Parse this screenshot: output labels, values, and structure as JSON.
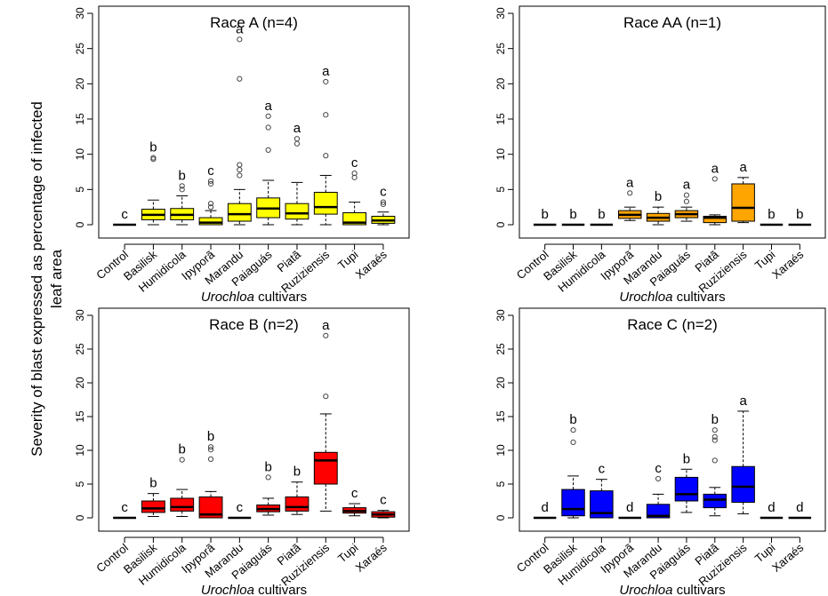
{
  "figure": {
    "ylabel_line1": "Severity of blast expressed as percentage of infected",
    "ylabel_line2": "leaf area",
    "xlabel_italic": "Urochloa",
    "xlabel_rest": " cultivars"
  },
  "chart_data": [
    {
      "type": "box",
      "title": "Race A (n=4)",
      "xlabel": "Urochloa cultivars",
      "ylabel": "Severity of blast expressed as percentage of infected leaf area",
      "ylim": [
        0,
        30
      ],
      "yticks": [
        0,
        5,
        10,
        15,
        20,
        25,
        30
      ],
      "color": "#FFFF00",
      "categories": [
        "Control",
        "Basilisk",
        "Humidicola",
        "Ipyporã",
        "Marandu",
        "Paiaguás",
        "Piatã",
        "Ruziziensis",
        "Tupi",
        "Xaraés"
      ],
      "boxes": [
        {
          "q1": 0,
          "median": 0,
          "q3": 0,
          "whisker_low": 0,
          "whisker_high": 0,
          "outliers": [],
          "letter": "c"
        },
        {
          "q1": 0.7,
          "median": 1.4,
          "q3": 2.2,
          "whisker_low": 0,
          "whisker_high": 3.5,
          "outliers": [
            9.3,
            9.5
          ],
          "letter": "b"
        },
        {
          "q1": 0.7,
          "median": 1.4,
          "q3": 2.3,
          "whisker_low": 0,
          "whisker_high": 4.1,
          "outliers": [
            5,
            5.5
          ],
          "letter": "b"
        },
        {
          "q1": 0,
          "median": 0.3,
          "q3": 1,
          "whisker_low": 0,
          "whisker_high": 2,
          "outliers": [
            2.5,
            3,
            5.8,
            6.2
          ],
          "letter": "c"
        },
        {
          "q1": 0.5,
          "median": 1.5,
          "q3": 3,
          "whisker_low": 0,
          "whisker_high": 5,
          "outliers": [
            7,
            7.8,
            8.5,
            20.7,
            26.3
          ],
          "letter": "a"
        },
        {
          "q1": 1,
          "median": 2.3,
          "q3": 3.8,
          "whisker_low": 0,
          "whisker_high": 6.3,
          "outliers": [
            10.6,
            13.8,
            15.4
          ],
          "letter": "a"
        },
        {
          "q1": 0.8,
          "median": 1.6,
          "q3": 3,
          "whisker_low": 0,
          "whisker_high": 6,
          "outliers": [
            11.5,
            12.2
          ],
          "letter": "a"
        },
        {
          "q1": 1.5,
          "median": 2.5,
          "q3": 4.6,
          "whisker_low": 0,
          "whisker_high": 7,
          "outliers": [
            9.8,
            15.6,
            20.3
          ],
          "letter": "a"
        },
        {
          "q1": 0,
          "median": 0.3,
          "q3": 1.7,
          "whisker_low": 0,
          "whisker_high": 3.2,
          "outliers": [
            6.7,
            7.3
          ],
          "letter": "c"
        },
        {
          "q1": 0.2,
          "median": 0.6,
          "q3": 1.2,
          "whisker_low": 0,
          "whisker_high": 1.8,
          "outliers": [
            2.9,
            3.2
          ],
          "letter": "c"
        }
      ]
    },
    {
      "type": "box",
      "title": "Race AA (n=1)",
      "xlabel": "Urochloa cultivars",
      "ylim": [
        0,
        30
      ],
      "yticks": [
        0,
        5,
        10,
        15,
        20,
        25,
        30
      ],
      "color": "#FFA500",
      "categories": [
        "Control",
        "Basilisk",
        "Humidicola",
        "Ipyporã",
        "Marandu",
        "Paiaguás",
        "Piatã",
        "Ruziziensis",
        "Tupi",
        "Xaraés"
      ],
      "boxes": [
        {
          "q1": 0,
          "median": 0,
          "q3": 0,
          "whisker_low": 0,
          "whisker_high": 0,
          "outliers": [],
          "letter": "b"
        },
        {
          "q1": 0,
          "median": 0,
          "q3": 0,
          "whisker_low": 0,
          "whisker_high": 0,
          "outliers": [],
          "letter": "b"
        },
        {
          "q1": 0,
          "median": 0,
          "q3": 0,
          "whisker_low": 0,
          "whisker_high": 0,
          "outliers": [],
          "letter": "b"
        },
        {
          "q1": 0.9,
          "median": 1.4,
          "q3": 2,
          "whisker_low": 0.6,
          "whisker_high": 2.5,
          "outliers": [
            4.5
          ],
          "letter": "a"
        },
        {
          "q1": 0.5,
          "median": 1,
          "q3": 1.6,
          "whisker_low": 0,
          "whisker_high": 2.5,
          "outliers": [],
          "letter": "b"
        },
        {
          "q1": 1,
          "median": 1.5,
          "q3": 2,
          "whisker_low": 0.5,
          "whisker_high": 2.5,
          "outliers": [
            3.3,
            4.2
          ],
          "letter": "a"
        },
        {
          "q1": 0.3,
          "median": 1,
          "q3": 1.2,
          "whisker_low": 0,
          "whisker_high": 1.4,
          "outliers": [
            6.5
          ],
          "letter": "a"
        },
        {
          "q1": 0.5,
          "median": 2.4,
          "q3": 5.8,
          "whisker_low": 0.3,
          "whisker_high": 6.7,
          "outliers": [],
          "letter": "a"
        },
        {
          "q1": 0,
          "median": 0,
          "q3": 0,
          "whisker_low": 0,
          "whisker_high": 0,
          "outliers": [],
          "letter": "b"
        },
        {
          "q1": 0,
          "median": 0,
          "q3": 0,
          "whisker_low": 0,
          "whisker_high": 0,
          "outliers": [],
          "letter": "b"
        }
      ]
    },
    {
      "type": "box",
      "title": "Race B (n=2)",
      "xlabel": "Urochloa cultivars",
      "ylim": [
        0,
        30
      ],
      "yticks": [
        0,
        5,
        10,
        15,
        20,
        25,
        30
      ],
      "color": "#FF0000",
      "categories": [
        "Control",
        "Basilisk",
        "Humidicola",
        "Ipyporã",
        "Marandu",
        "Paiaguás",
        "Piatã",
        "Ruziziensis",
        "Tupi",
        "Xaraés"
      ],
      "boxes": [
        {
          "q1": 0,
          "median": 0,
          "q3": 0,
          "whisker_low": 0,
          "whisker_high": 0,
          "outliers": [],
          "letter": "c"
        },
        {
          "q1": 0.8,
          "median": 1.4,
          "q3": 2.5,
          "whisker_low": 0.2,
          "whisker_high": 3.6,
          "outliers": [],
          "letter": "b"
        },
        {
          "q1": 1,
          "median": 1.6,
          "q3": 2.9,
          "whisker_low": 0.2,
          "whisker_high": 4.2,
          "outliers": [
            8.6
          ],
          "letter": "b"
        },
        {
          "q1": 0,
          "median": 0.5,
          "q3": 3.1,
          "whisker_low": 0,
          "whisker_high": 3.9,
          "outliers": [
            8.7,
            10.1,
            10.5
          ],
          "letter": "b"
        },
        {
          "q1": 0,
          "median": 0,
          "q3": 0,
          "whisker_low": 0,
          "whisker_high": 0,
          "outliers": [],
          "letter": "c"
        },
        {
          "q1": 0.9,
          "median": 1.3,
          "q3": 1.9,
          "whisker_low": 0.4,
          "whisker_high": 2.9,
          "outliers": [
            6
          ],
          "letter": "b"
        },
        {
          "q1": 1,
          "median": 1.6,
          "q3": 3.1,
          "whisker_low": 0.5,
          "whisker_high": 5.3,
          "outliers": [],
          "letter": "b"
        },
        {
          "q1": 5,
          "median": 8.5,
          "q3": 9.7,
          "whisker_low": 1,
          "whisker_high": 15.4,
          "outliers": [
            18,
            27
          ],
          "letter": "a"
        },
        {
          "q1": 0.7,
          "median": 1,
          "q3": 1.5,
          "whisker_low": 0.3,
          "whisker_high": 2.1,
          "outliers": [],
          "letter": "c"
        },
        {
          "q1": 0.1,
          "median": 0.5,
          "q3": 0.9,
          "whisker_low": 0,
          "whisker_high": 1.1,
          "outliers": [],
          "letter": "c"
        }
      ]
    },
    {
      "type": "box",
      "title": "Race C (n=2)",
      "xlabel": "Urochloa cultivars",
      "ylim": [
        0,
        30
      ],
      "yticks": [
        0,
        5,
        10,
        15,
        20,
        25,
        30
      ],
      "color": "#0000FF",
      "categories": [
        "Control",
        "Basilisk",
        "Humidicola",
        "Ipyporã",
        "Marandu",
        "Paiaguás",
        "Piatã",
        "Ruziziensis",
        "Tupi",
        "Xaraés"
      ],
      "boxes": [
        {
          "q1": 0,
          "median": 0,
          "q3": 0,
          "whisker_low": 0,
          "whisker_high": 0,
          "outliers": [],
          "letter": "d"
        },
        {
          "q1": 0.3,
          "median": 1.3,
          "q3": 4.2,
          "whisker_low": 0,
          "whisker_high": 6.2,
          "outliers": [
            11.2,
            13
          ],
          "letter": "b"
        },
        {
          "q1": 0,
          "median": 0.7,
          "q3": 4,
          "whisker_low": 0,
          "whisker_high": 5.7,
          "outliers": [],
          "letter": "c"
        },
        {
          "q1": 0,
          "median": 0,
          "q3": 0,
          "whisker_low": 0,
          "whisker_high": 0,
          "outliers": [],
          "letter": "d"
        },
        {
          "q1": 0,
          "median": 0.3,
          "q3": 2,
          "whisker_low": 0,
          "whisker_high": 3.5,
          "outliers": [
            5.8
          ],
          "letter": "c"
        },
        {
          "q1": 2.5,
          "median": 3.5,
          "q3": 6,
          "whisker_low": 0.8,
          "whisker_high": 7.2,
          "outliers": [],
          "letter": "b"
        },
        {
          "q1": 1.5,
          "median": 2.7,
          "q3": 3.5,
          "whisker_low": 0.3,
          "whisker_high": 4.5,
          "outliers": [
            8.5,
            11.5,
            12,
            13
          ],
          "letter": "b"
        },
        {
          "q1": 2.3,
          "median": 4.6,
          "q3": 7.6,
          "whisker_low": 0.6,
          "whisker_high": 15.8,
          "outliers": [],
          "letter": "a"
        },
        {
          "q1": 0,
          "median": 0,
          "q3": 0,
          "whisker_low": 0,
          "whisker_high": 0,
          "outliers": [],
          "letter": "d"
        },
        {
          "q1": 0,
          "median": 0,
          "q3": 0,
          "whisker_low": 0,
          "whisker_high": 0,
          "outliers": [],
          "letter": "d"
        }
      ]
    }
  ]
}
